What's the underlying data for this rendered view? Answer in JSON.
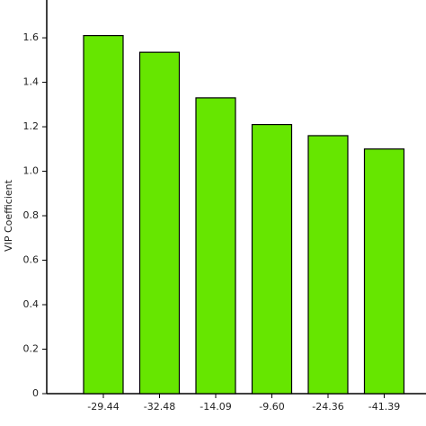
{
  "chart_data": {
    "type": "bar",
    "ylabel": "VIP Coefficient",
    "categories": [
      "-29.44",
      "-32.48",
      "-14.09",
      "-9.60",
      "-24.36",
      "-41.39"
    ],
    "values": [
      1.61,
      1.535,
      1.33,
      1.21,
      1.16,
      1.1
    ],
    "color": "#66e600",
    "ylim": [
      0,
      1.77
    ],
    "yticks": [
      0,
      0.2,
      0.4,
      0.6,
      0.8,
      {
        "value": 1,
        "label": "1.0"
      },
      1.2,
      1.4,
      1.6
    ],
    "grid": false
  }
}
